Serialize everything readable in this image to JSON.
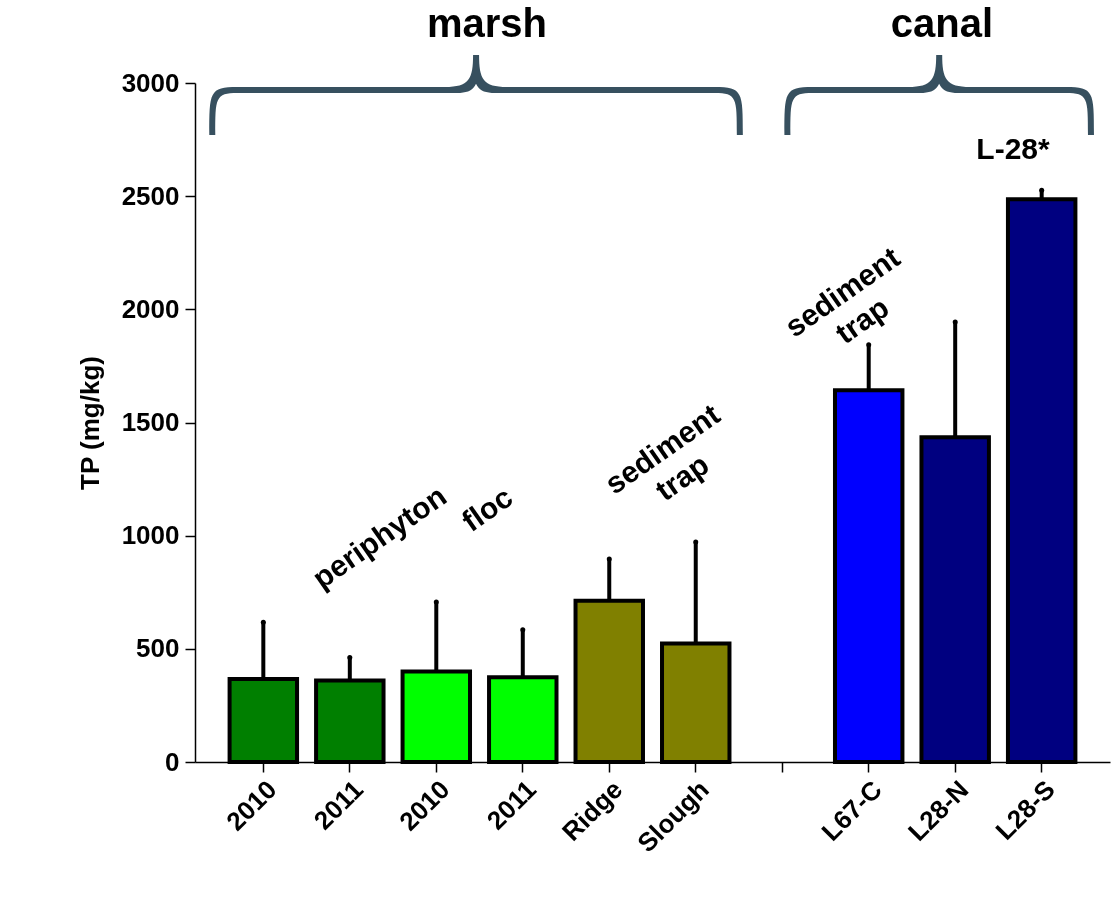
{
  "chart_data": {
    "type": "bar",
    "ylabel": "TP (mg/kg)",
    "categories": [
      "2010",
      "2011",
      "2010",
      "2011",
      "Ridge",
      "Slough",
      null,
      "L67-C",
      "L28-N",
      "L28-S"
    ],
    "values": [
      367,
      360,
      400,
      374,
      712,
      524,
      null,
      1643,
      1435,
      2486
    ],
    "colors": [
      "#007f00",
      "#007f00",
      "#00ff00",
      "#00ff00",
      "#808000",
      "#808000",
      null,
      "#0000ff",
      "#000080",
      "#000080"
    ],
    "errors": [
      [
        367,
        618
      ],
      [
        360,
        462
      ],
      [
        400,
        707
      ],
      [
        374,
        584
      ],
      [
        712,
        897
      ],
      [
        524,
        972
      ],
      null,
      [
        1643,
        1843
      ],
      [
        1435,
        1944
      ],
      [
        2486,
        2526
      ]
    ],
    "ylim": [
      0,
      3000
    ],
    "yticks": [
      0,
      500,
      1000,
      1500,
      2000,
      2500,
      3000
    ],
    "grid": false,
    "annotations": [
      "marsh",
      "canal",
      "periphyton",
      "floc",
      "sediment trap",
      "sediment trap",
      "L-28*"
    ]
  }
}
